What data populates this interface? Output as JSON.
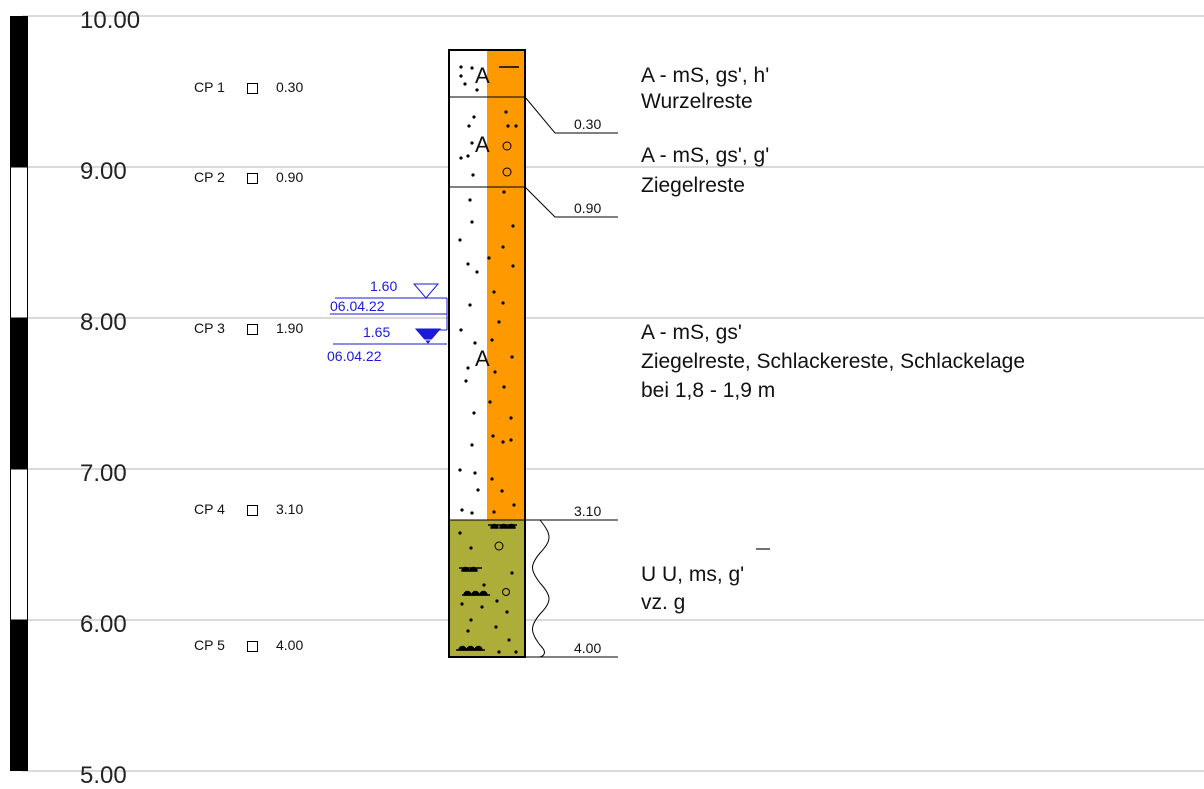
{
  "axis": {
    "ticks": [
      {
        "value": "10.00"
      },
      {
        "value": "9.00"
      },
      {
        "value": "8.00"
      },
      {
        "value": "7.00"
      },
      {
        "value": "6.00"
      },
      {
        "value": "5.00"
      }
    ]
  },
  "samples": [
    {
      "name": "CP 1",
      "depth": "0.30"
    },
    {
      "name": "CP 2",
      "depth": "0.90"
    },
    {
      "name": "CP 3",
      "depth": "1.90"
    },
    {
      "name": "CP 4",
      "depth": "3.10"
    },
    {
      "name": "CP 5",
      "depth": "4.00"
    }
  ],
  "water_levels": [
    {
      "depth": "1.60",
      "date": "06.04.22"
    },
    {
      "depth": "1.65",
      "date": "06.04.22"
    }
  ],
  "layers": [
    {
      "code": "A",
      "bottom_depth": "0.30",
      "line1": "A - mS, gs', h'",
      "line2": "Wurzelreste",
      "line3": "",
      "fill": "#ff9900"
    },
    {
      "code": "A",
      "bottom_depth": "0.90",
      "line1": "A - mS, gs', g'",
      "line2": "Ziegelreste",
      "line3": "",
      "fill": "#ff9900"
    },
    {
      "code": "A",
      "bottom_depth": "3.10",
      "line1": "A - mS, gs'",
      "line2": "Ziegelreste, Schlackereste, Schlackelage",
      "line3": "bei 1,8 - 1,9 m",
      "fill": "#ff9900"
    },
    {
      "code": "U",
      "bottom_depth": "4.00",
      "line1": "U  U, ms, g'",
      "line2": "vz. g",
      "line3": "",
      "fill": "#adad3a"
    }
  ],
  "colors": {
    "anthropogenic_fill": "#ff9900",
    "silt_fill": "#adad3a",
    "water_level": "#1a1ad8",
    "grid": "#b4b4b4"
  }
}
